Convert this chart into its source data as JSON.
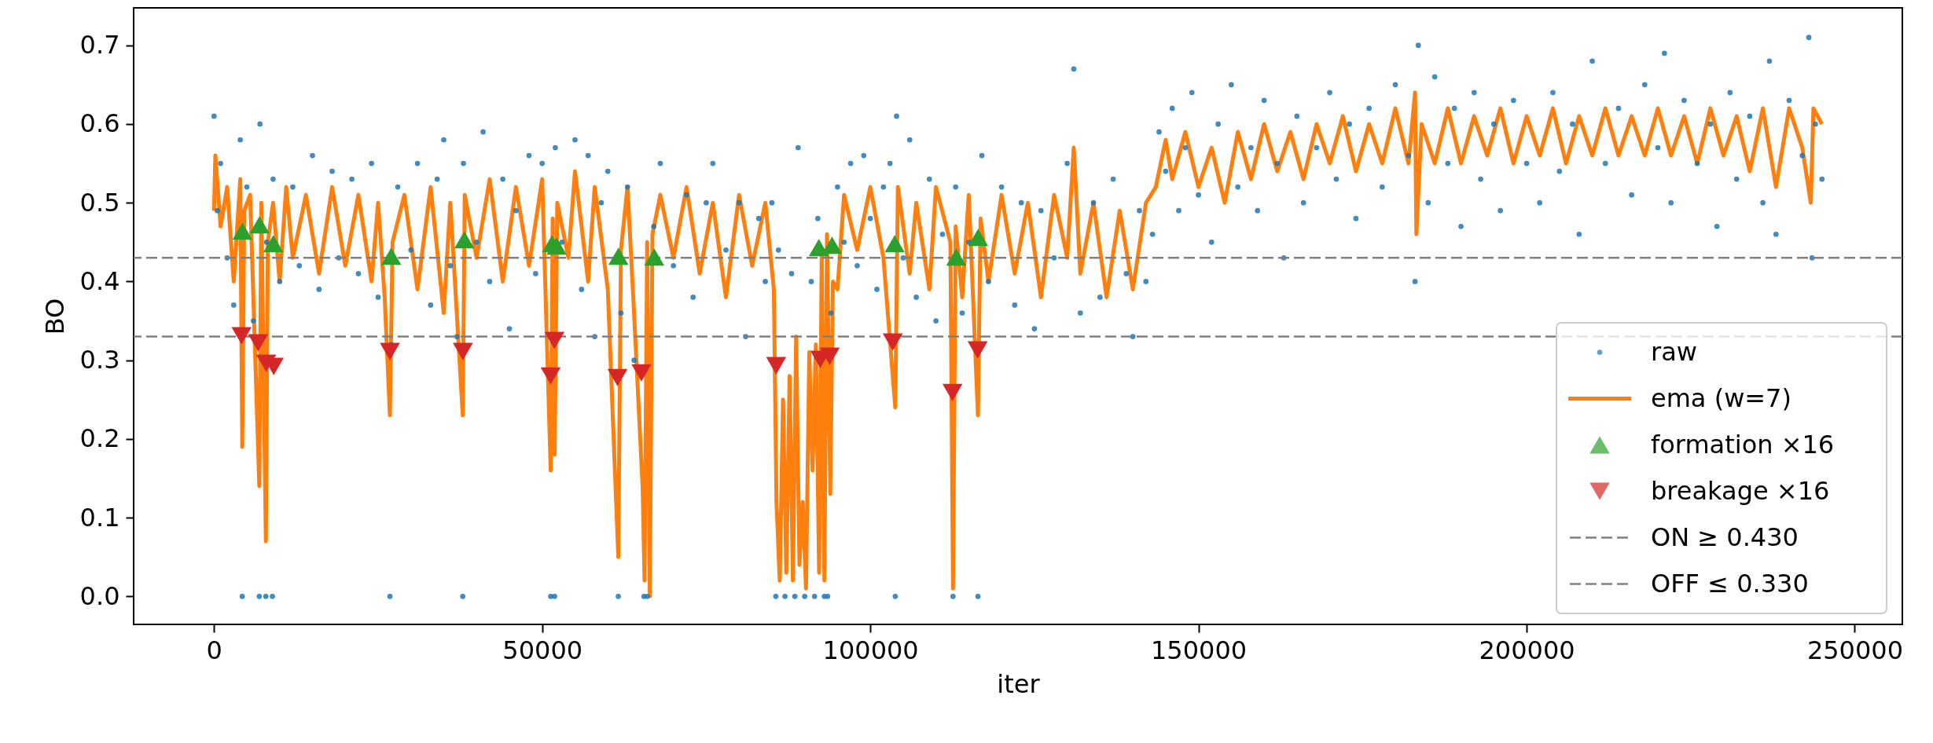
{
  "chart_data": {
    "type": "scatter",
    "xlabel": "iter",
    "ylabel": "BO",
    "xlim": [
      -12250,
      257250
    ],
    "ylim": [
      -0.0356,
      0.7476
    ],
    "xticks": [
      0,
      50000,
      100000,
      150000,
      200000,
      250000
    ],
    "yticks": [
      {
        "value": 0,
        "label": "0.0"
      },
      0.1,
      0.2,
      0.3,
      0.4,
      0.5,
      0.6,
      0.7
    ],
    "grid": false,
    "legend": "bottom right",
    "series": [
      {
        "name": "raw",
        "marker": "circle",
        "color": "#1f77b4",
        "x": [
          0,
          500,
          1000,
          2000,
          3000,
          4000,
          4300,
          5000,
          6000,
          6900,
          7000,
          7900,
          8000,
          8900,
          9000,
          10000,
          12000,
          13000,
          15000,
          16000,
          18000,
          19000,
          21000,
          22000,
          24000,
          25000,
          26800,
          27000,
          28000,
          30000,
          31000,
          33000,
          34000,
          35000,
          36000,
          37000,
          37900,
          38000,
          40000,
          41000,
          42000,
          44000,
          45000,
          46000,
          48000,
          49000,
          50000,
          51300,
          51900,
          52000,
          53000,
          55000,
          56000,
          57000,
          58000,
          59000,
          60000,
          61600,
          62000,
          63000,
          64000,
          65500,
          66000,
          67000,
          68000,
          70000,
          72000,
          73000,
          75000,
          76000,
          78000,
          80000,
          81000,
          83000,
          84000,
          85000,
          85600,
          86000,
          87000,
          88000,
          88500,
          89000,
          90000,
          91000,
          91500,
          92000,
          93000,
          93500,
          94000,
          95000,
          96000,
          97000,
          98000,
          99000,
          100000,
          101000,
          102000,
          103000,
          103800,
          104000,
          105000,
          106000,
          107000,
          109000,
          110000,
          111000,
          112600,
          113000,
          114000,
          115000,
          116400,
          117000,
          118000,
          120000,
          122000,
          123000,
          125000,
          126000,
          128000,
          130000,
          131000,
          132000,
          134000,
          135000,
          137000,
          139000,
          140000,
          141000,
          142000,
          143000,
          144000,
          145000,
          146000,
          147000,
          148000,
          149000,
          150000,
          152000,
          153000,
          155000,
          156000,
          158000,
          159000,
          160000,
          162000,
          163000,
          165000,
          166000,
          168000,
          170000,
          171000,
          173000,
          174000,
          176000,
          178000,
          180000,
          182000,
          183000,
          183500,
          185000,
          186000,
          188000,
          189000,
          190000,
          192000,
          193000,
          195000,
          196000,
          198000,
          200000,
          202000,
          204000,
          205000,
          207000,
          208000,
          210000,
          212000,
          214000,
          216000,
          218000,
          220000,
          221000,
          222000,
          224000,
          226000,
          228000,
          229000,
          231000,
          232000,
          234000,
          236000,
          237000,
          238000,
          240000,
          242000,
          243000,
          243500,
          244000,
          245000
        ],
        "values": [
          0.61,
          0.49,
          0.55,
          0.43,
          0.37,
          0.58,
          0,
          0.52,
          0.35,
          0,
          0.6,
          0,
          0.45,
          0,
          0.53,
          0.4,
          0.52,
          0.42,
          0.56,
          0.39,
          0.54,
          0.43,
          0.53,
          0.41,
          0.55,
          0.38,
          0,
          0.32,
          0.52,
          0.44,
          0.55,
          0.37,
          0.53,
          0.58,
          0.42,
          0.33,
          0,
          0.55,
          0.45,
          0.59,
          0.4,
          0.53,
          0.34,
          0.49,
          0.56,
          0.41,
          0.55,
          0,
          0,
          0.57,
          0.45,
          0.58,
          0.39,
          0.56,
          0.33,
          0.5,
          0.54,
          0,
          0.36,
          0.52,
          0.3,
          0,
          0,
          0.47,
          0.55,
          0.42,
          0.51,
          0.38,
          0.5,
          0.55,
          0.44,
          0.5,
          0.33,
          0.48,
          0.4,
          0.5,
          0,
          0.44,
          0,
          0.41,
          0,
          0.57,
          0,
          0.4,
          0,
          0.48,
          0,
          0,
          0.36,
          0.52,
          0.45,
          0.55,
          0.42,
          0.56,
          0.48,
          0.39,
          0.52,
          0.55,
          0,
          0.61,
          0.43,
          0.58,
          0.38,
          0.53,
          0.35,
          0.46,
          0,
          0.52,
          0.36,
          0.45,
          0,
          0.56,
          0.4,
          0.52,
          0.37,
          0.5,
          0.34,
          0.49,
          0.43,
          0.55,
          0.67,
          0.36,
          0.5,
          0.38,
          0.53,
          0.41,
          0.33,
          0.49,
          0.4,
          0.46,
          0.59,
          0.54,
          0.62,
          0.49,
          0.57,
          0.64,
          0.51,
          0.45,
          0.6,
          0.65,
          0.52,
          0.57,
          0.49,
          0.63,
          0.55,
          0.43,
          0.61,
          0.5,
          0.57,
          0.64,
          0.53,
          0.6,
          0.48,
          0.62,
          0.52,
          0.65,
          0.56,
          0.4,
          0.7,
          0.5,
          0.66,
          0.55,
          0.62,
          0.47,
          0.64,
          0.53,
          0.6,
          0.49,
          0.63,
          0.55,
          0.5,
          0.64,
          0.54,
          0.6,
          0.46,
          0.68,
          0.55,
          0.62,
          0.51,
          0.65,
          0.57,
          0.69,
          0.5,
          0.63,
          0.55,
          0.6,
          0.47,
          0.64,
          0.53,
          0.61,
          0.5,
          0.68,
          0.46,
          0.63,
          0.56,
          0.71,
          0.43,
          0.6,
          0.53
        ]
      },
      {
        "name": "ema (w=7)",
        "type": "line",
        "line_style": "solid",
        "color": "#ff7f0e",
        "x": [
          0,
          200,
          1000,
          2000,
          3000,
          4000,
          4300,
          4600,
          5500,
          6900,
          7200,
          7900,
          8200,
          9000,
          10000,
          11000,
          12000,
          14000,
          16000,
          18000,
          20000,
          22000,
          24000,
          25000,
          26000,
          26800,
          27200,
          29000,
          31000,
          33000,
          35000,
          36000,
          37900,
          38200,
          40000,
          42000,
          44000,
          46000,
          48000,
          50000,
          51300,
          51600,
          51900,
          52300,
          54000,
          55000,
          57000,
          58000,
          60000,
          61600,
          62000,
          63000,
          64000,
          65300,
          65600,
          66000,
          66400,
          66800,
          68000,
          70000,
          72000,
          74000,
          76000,
          78000,
          80000,
          82000,
          84000,
          85300,
          85700,
          86200,
          86700,
          87200,
          87700,
          88200,
          88700,
          89200,
          89700,
          90200,
          90700,
          91200,
          91700,
          92200,
          92600,
          93000,
          93400,
          93900,
          94300,
          95000,
          96000,
          98000,
          100000,
          102000,
          103800,
          104200,
          106000,
          107000,
          109000,
          110000,
          112200,
          112600,
          113000,
          114000,
          115000,
          116400,
          116800,
          118000,
          120000,
          122000,
          124000,
          126000,
          128000,
          130000,
          131000,
          132000,
          134000,
          136000,
          138000,
          140000,
          142000,
          143500,
          145000,
          146000,
          148000,
          150000,
          152000,
          154000,
          156000,
          158000,
          160000,
          162000,
          164000,
          166000,
          168000,
          170000,
          172000,
          174000,
          176000,
          178000,
          180000,
          182000,
          183000,
          183200,
          184000,
          186000,
          188000,
          190000,
          192000,
          194000,
          196000,
          198000,
          200000,
          202000,
          204000,
          206000,
          208000,
          210000,
          212000,
          214000,
          216000,
          218000,
          220000,
          222000,
          224000,
          226000,
          228000,
          230000,
          232000,
          234000,
          236000,
          238000,
          240000,
          242000,
          243300,
          243700,
          245000
        ],
        "values": [
          0.49,
          0.56,
          0.47,
          0.52,
          0.4,
          0.53,
          0.19,
          0.49,
          0.51,
          0.14,
          0.5,
          0.07,
          0.45,
          0.5,
          0.4,
          0.52,
          0.43,
          0.51,
          0.41,
          0.52,
          0.42,
          0.51,
          0.4,
          0.5,
          0.38,
          0.23,
          0.45,
          0.51,
          0.39,
          0.52,
          0.36,
          0.5,
          0.23,
          0.51,
          0.43,
          0.53,
          0.4,
          0.52,
          0.42,
          0.53,
          0.16,
          0.48,
          0.18,
          0.5,
          0.43,
          0.54,
          0.4,
          0.52,
          0.39,
          0.05,
          0.44,
          0.52,
          0.36,
          0.14,
          0.02,
          0.45,
          0.0,
          0.46,
          0.51,
          0.43,
          0.52,
          0.41,
          0.5,
          0.38,
          0.51,
          0.42,
          0.5,
          0.39,
          0.12,
          0.02,
          0.25,
          0.03,
          0.28,
          0.02,
          0.33,
          0.04,
          0.12,
          0.01,
          0.31,
          0.16,
          0.32,
          0.03,
          0.44,
          0.02,
          0.46,
          0.13,
          0.4,
          0.39,
          0.51,
          0.44,
          0.52,
          0.43,
          0.24,
          0.52,
          0.41,
          0.5,
          0.39,
          0.52,
          0.45,
          0.01,
          0.47,
          0.38,
          0.51,
          0.23,
          0.48,
          0.4,
          0.51,
          0.41,
          0.5,
          0.38,
          0.51,
          0.43,
          0.57,
          0.41,
          0.5,
          0.38,
          0.49,
          0.39,
          0.5,
          0.52,
          0.58,
          0.53,
          0.59,
          0.52,
          0.57,
          0.5,
          0.59,
          0.53,
          0.6,
          0.54,
          0.59,
          0.53,
          0.6,
          0.55,
          0.61,
          0.54,
          0.6,
          0.55,
          0.62,
          0.55,
          0.64,
          0.46,
          0.6,
          0.55,
          0.62,
          0.55,
          0.61,
          0.56,
          0.62,
          0.55,
          0.61,
          0.56,
          0.62,
          0.55,
          0.61,
          0.56,
          0.62,
          0.56,
          0.61,
          0.56,
          0.62,
          0.56,
          0.61,
          0.55,
          0.62,
          0.56,
          0.61,
          0.54,
          0.62,
          0.52,
          0.62,
          0.57,
          0.5,
          0.62,
          0.6
        ]
      },
      {
        "name": "formation ×16",
        "marker": "triangle",
        "color": "#2ca02c",
        "x": [
          4330,
          6930,
          9030,
          27000,
          38140,
          51500,
          52200,
          61620,
          67080,
          92150,
          94170,
          103710,
          113090,
          116420
        ],
        "values": [
          0.464,
          0.472,
          0.448,
          0.432,
          0.453,
          0.448,
          0.445,
          0.432,
          0.431,
          0.443,
          0.446,
          0.448,
          0.431,
          0.456
        ]
      },
      {
        "name": "breakage ×16",
        "marker": "triangle-down",
        "color": "#d62728",
        "x": [
          4190,
          6720,
          7950,
          9100,
          26800,
          37920,
          51870,
          51290,
          61480,
          65130,
          85650,
          92370,
          93810,
          103420,
          112520,
          116350
        ],
        "values": [
          0.331,
          0.322,
          0.296,
          0.292,
          0.311,
          0.311,
          0.325,
          0.28,
          0.278,
          0.284,
          0.293,
          0.301,
          0.305,
          0.323,
          0.259,
          0.313
        ]
      }
    ],
    "ref_lines": [
      {
        "axis": "y",
        "value": 0.43,
        "label": "ON ≥ 0.430",
        "color": "#808080",
        "line_style": "dashed"
      },
      {
        "axis": "y",
        "value": 0.33,
        "label": "OFF ≤ 0.330",
        "color": "#808080",
        "line_style": "dashed"
      }
    ]
  }
}
